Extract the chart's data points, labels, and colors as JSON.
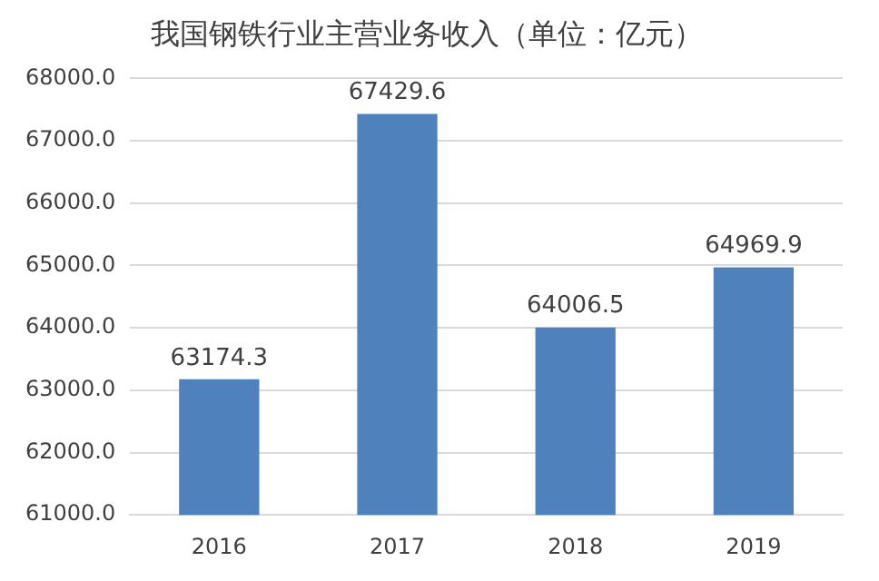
{
  "chart_data": {
    "type": "bar",
    "title": "我国钢铁行业主营业务收入（单位：亿元）",
    "categories": [
      "2016",
      "2017",
      "2018",
      "2019"
    ],
    "values": [
      63174.3,
      67429.6,
      64006.5,
      64969.9
    ],
    "color": "#4f81bd",
    "ylim": [
      61000,
      68000
    ],
    "yticks": [
      {
        "value": 61000,
        "label": "61000.0"
      },
      {
        "value": 62000,
        "label": "62000.0"
      },
      {
        "value": 63000,
        "label": "63000.0"
      },
      {
        "value": 64000,
        "label": "64000.0"
      },
      {
        "value": 65000,
        "label": "65000.0"
      },
      {
        "value": 66000,
        "label": "66000.0"
      },
      {
        "value": 67000,
        "label": "67000.0"
      },
      {
        "value": 68000,
        "label": "68000.0"
      }
    ],
    "grid": "y",
    "data_labels": true,
    "legend": false
  }
}
